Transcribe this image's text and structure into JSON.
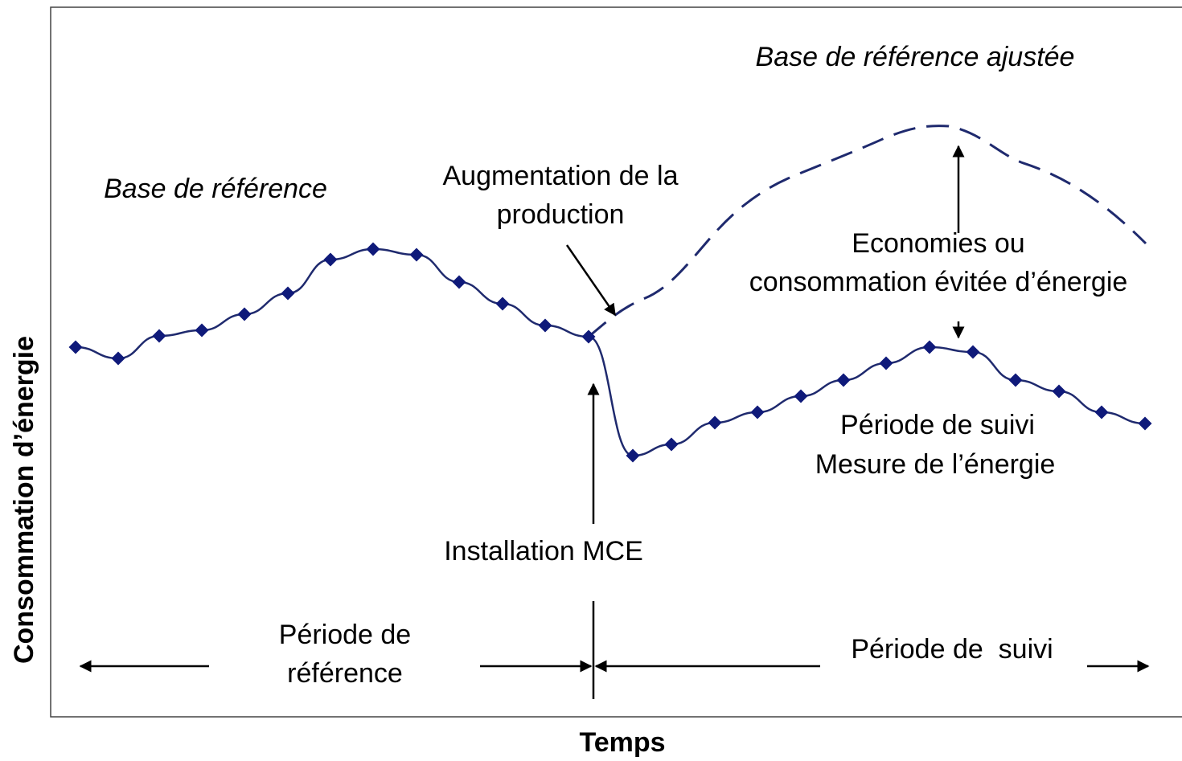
{
  "y_axis_label": "Consommation d’énergie",
  "x_axis_label": "Temps",
  "annotations": {
    "adjusted_baseline": [
      "Base de référence ajustée"
    ],
    "baseline": [
      "Base de référence"
    ],
    "production_increase": [
      "Augmentation de la",
      "production"
    ],
    "savings": [
      "Economies ou",
      "consommation évitée d’énergie"
    ],
    "monitoring": [
      "Période de suivi",
      "Mesure de l’énergie"
    ],
    "installation": [
      "Installation MCE"
    ],
    "reference_period": [
      "Période de",
      "référence"
    ],
    "monitoring_period": [
      "Période de  suivi"
    ]
  }
}
